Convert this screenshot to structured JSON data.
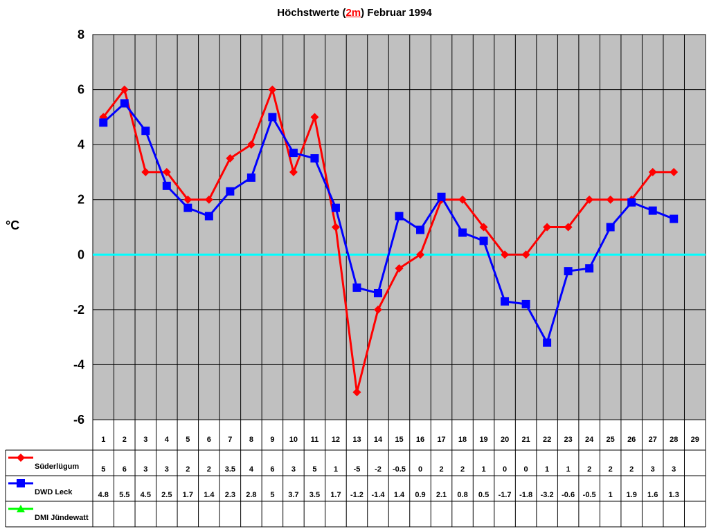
{
  "title": {
    "prefix": "Höchstwerte (",
    "accent": "2m",
    "suffix": ") Februar 1994"
  },
  "colors": {
    "plot_bg": "#c0c0c0",
    "zero_line": "#00ffff",
    "grid": "#000000"
  },
  "chart_data": {
    "type": "line",
    "title": "Höchstwerte (2m) Februar 1994",
    "ylabel": "°C",
    "ylim": [
      -6,
      8
    ],
    "yticks": [
      8,
      6,
      4,
      2,
      0,
      -2,
      -4,
      -6
    ],
    "categories": [
      "1",
      "2",
      "3",
      "4",
      "5",
      "6",
      "7",
      "8",
      "9",
      "10",
      "11",
      "12",
      "13",
      "14",
      "15",
      "16",
      "17",
      "18",
      "19",
      "20",
      "21",
      "22",
      "23",
      "24",
      "25",
      "26",
      "27",
      "28",
      "29"
    ],
    "grid": true,
    "legend_placement": "data table below chart",
    "series": [
      {
        "name": "Süderlügum",
        "color": "#ff0000",
        "marker": "diamond",
        "values": [
          5,
          6,
          3,
          3,
          2,
          2,
          3.5,
          4,
          6,
          3,
          5,
          1,
          -5,
          -2,
          -0.5,
          0,
          2,
          2,
          1,
          0,
          0,
          1,
          1,
          2,
          2,
          2,
          3,
          3,
          null
        ],
        "labels": [
          "5",
          "6",
          "3",
          "3",
          "2",
          "2",
          "3.5",
          "4",
          "6",
          "3",
          "5",
          "1",
          "-5",
          "-2",
          "-0.5",
          "0",
          "2",
          "2",
          "1",
          "0",
          "0",
          "1",
          "1",
          "2",
          "2",
          "2",
          "3",
          "3",
          ""
        ]
      },
      {
        "name": "DWD Leck",
        "color": "#0000ff",
        "marker": "square",
        "values": [
          4.8,
          5.5,
          4.5,
          2.5,
          1.7,
          1.4,
          2.3,
          2.8,
          5,
          3.7,
          3.5,
          1.7,
          -1.2,
          -1.4,
          1.4,
          0.9,
          2.1,
          0.8,
          0.5,
          -1.7,
          -1.8,
          -3.2,
          -0.6,
          -0.5,
          1,
          1.9,
          1.6,
          1.3,
          null
        ],
        "labels": [
          "4.8",
          "5.5",
          "4.5",
          "2.5",
          "1.7",
          "1.4",
          "2.3",
          "2.8",
          "5",
          "3.7",
          "3.5",
          "1.7",
          "-1.2",
          "-1.4",
          "1.4",
          "0.9",
          "2.1",
          "0.8",
          "0.5",
          "-1.7",
          "-1.8",
          "-3.2",
          "-0.6",
          "-0.5",
          "1",
          "1.9",
          "1.6",
          "1.3",
          ""
        ]
      },
      {
        "name": "DMI Jündewatt",
        "color": "#00ff00",
        "marker": "triangle",
        "values": [
          null,
          null,
          null,
          null,
          null,
          null,
          null,
          null,
          null,
          null,
          null,
          null,
          null,
          null,
          null,
          null,
          null,
          null,
          null,
          null,
          null,
          null,
          null,
          null,
          null,
          null,
          null,
          null,
          null
        ],
        "labels": [
          "",
          "",
          "",
          "",
          "",
          "",
          "",
          "",
          "",
          "",
          "",
          "",
          "",
          "",
          "",
          "",
          "",
          "",
          "",
          "",
          "",
          "",
          "",
          "",
          "",
          "",
          "",
          "",
          ""
        ]
      }
    ]
  }
}
